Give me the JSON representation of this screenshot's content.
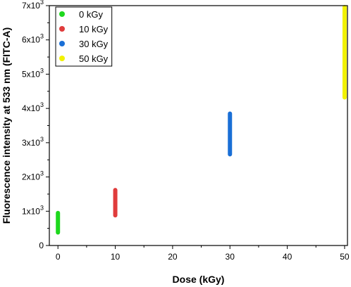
{
  "chart_data": {
    "type": "scatter",
    "xlabel": "Dose (kGy)",
    "ylabel": "Fluorescence intensity at 533 nm (FITC-A)",
    "xlim": [
      -1.5,
      50.5
    ],
    "ylim": [
      0,
      7000
    ],
    "x_ticks": [
      0,
      10,
      20,
      30,
      40,
      50
    ],
    "x_tick_labels": [
      "0",
      "10",
      "20",
      "30",
      "40",
      "50"
    ],
    "y_ticks": [
      0,
      1000,
      2000,
      3000,
      4000,
      5000,
      6000,
      7000
    ],
    "y_tick_labels": [
      {
        "mantissa": "0",
        "exp": ""
      },
      {
        "mantissa": "1x10",
        "exp": "3"
      },
      {
        "mantissa": "2x10",
        "exp": "3"
      },
      {
        "mantissa": "3x10",
        "exp": "3"
      },
      {
        "mantissa": "4x10",
        "exp": "3"
      },
      {
        "mantissa": "5x10",
        "exp": "3"
      },
      {
        "mantissa": "6x10",
        "exp": "3"
      },
      {
        "mantissa": "7x10",
        "exp": "3"
      }
    ],
    "legend_position": "top-left",
    "grid": false,
    "series": [
      {
        "name": "0 kGy",
        "color": "#1ed81e",
        "x": 0,
        "y_min": 380,
        "y_max": 950
      },
      {
        "name": "10 kGy",
        "color": "#e03c3c",
        "x": 10,
        "y_min": 880,
        "y_max": 1620
      },
      {
        "name": "30 kGy",
        "color": "#1a6fd6",
        "x": 30,
        "y_min": 2660,
        "y_max": 3850
      },
      {
        "name": "50 kGy",
        "color": "#f2f200",
        "x": 50,
        "y_min": 4320,
        "y_max": 6960
      }
    ]
  }
}
